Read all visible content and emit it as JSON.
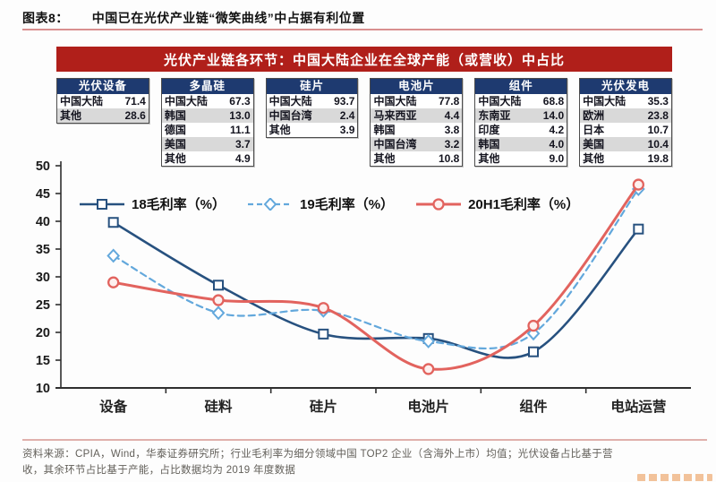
{
  "header": {
    "fig_label": "图表8：",
    "title": "中国已在光伏产业链“微笑曲线”中占据有利位置"
  },
  "banner": {
    "text": "光伏产业链各环节：中国大陆企业在全球产能（或营收）中占比",
    "background_color": "#b01f1a"
  },
  "tables": [
    {
      "header": "光伏设备",
      "rows": [
        {
          "label": "中国大陆",
          "value": "71.4"
        },
        {
          "label": "其他",
          "value": "28.6"
        }
      ]
    },
    {
      "header": "多晶硅",
      "rows": [
        {
          "label": "中国大陆",
          "value": "67.3"
        },
        {
          "label": "韩国",
          "value": "13.0"
        },
        {
          "label": "德国",
          "value": "11.1"
        },
        {
          "label": "美国",
          "value": "3.7"
        },
        {
          "label": "其他",
          "value": "4.9"
        }
      ]
    },
    {
      "header": "硅片",
      "rows": [
        {
          "label": "中国大陆",
          "value": "93.7"
        },
        {
          "label": "中国台湾",
          "value": "2.4"
        },
        {
          "label": "其他",
          "value": "3.9"
        }
      ]
    },
    {
      "header": "电池片",
      "rows": [
        {
          "label": "中国大陆",
          "value": "77.8"
        },
        {
          "label": "马来西亚",
          "value": "4.4"
        },
        {
          "label": "韩国",
          "value": "3.8"
        },
        {
          "label": "中国台湾",
          "value": "3.2"
        },
        {
          "label": "其他",
          "value": "10.8"
        }
      ]
    },
    {
      "header": "组件",
      "rows": [
        {
          "label": "中国大陆",
          "value": "68.8"
        },
        {
          "label": "东南亚",
          "value": "14.0"
        },
        {
          "label": "印度",
          "value": "4.2"
        },
        {
          "label": "韩国",
          "value": "4.0"
        },
        {
          "label": "其他",
          "value": "9.0"
        }
      ]
    },
    {
      "header": "光伏发电",
      "rows": [
        {
          "label": "中国大陆",
          "value": "35.3"
        },
        {
          "label": "欧洲",
          "value": "23.8"
        },
        {
          "label": "日本",
          "value": "10.7"
        },
        {
          "label": "美国",
          "value": "10.4"
        },
        {
          "label": "其他",
          "value": "19.8"
        }
      ]
    }
  ],
  "chart_data": {
    "type": "line",
    "categories": [
      "设备",
      "硅料",
      "硅片",
      "电池片",
      "组件",
      "电站运营"
    ],
    "series": [
      {
        "name": "18毛利率（%）",
        "color": "#27517f",
        "style": "solid",
        "marker": "square",
        "values": [
          39.8,
          28.5,
          19.7,
          18.9,
          16.5,
          38.6
        ]
      },
      {
        "name": "19毛利率（%）",
        "color": "#63a8dc",
        "style": "dashed",
        "marker": "diamond",
        "values": [
          33.8,
          23.5,
          23.9,
          18.4,
          19.8,
          45.8
        ]
      },
      {
        "name": "20H1毛利率（%）",
        "color": "#e2635e",
        "style": "solid",
        "marker": "circle",
        "values": [
          29.0,
          25.8,
          24.4,
          13.4,
          21.2,
          46.6
        ]
      }
    ],
    "ylim": [
      10,
      50
    ],
    "y_ticks": [
      10,
      15,
      20,
      25,
      30,
      35,
      40,
      45,
      50
    ],
    "xlabel": "",
    "ylabel": "",
    "grid": false,
    "legend_position": "inside-top-left"
  },
  "footer": {
    "line1": "资料来源：CPIA，Wind，华泰证券研究所；行业毛利率为细分领域中国 TOP2 企业（含海外上市）均值；光伏设备占比基于营",
    "line2": "收，其余环节占比基于产能，占比数据均为 2019 年度数据"
  }
}
